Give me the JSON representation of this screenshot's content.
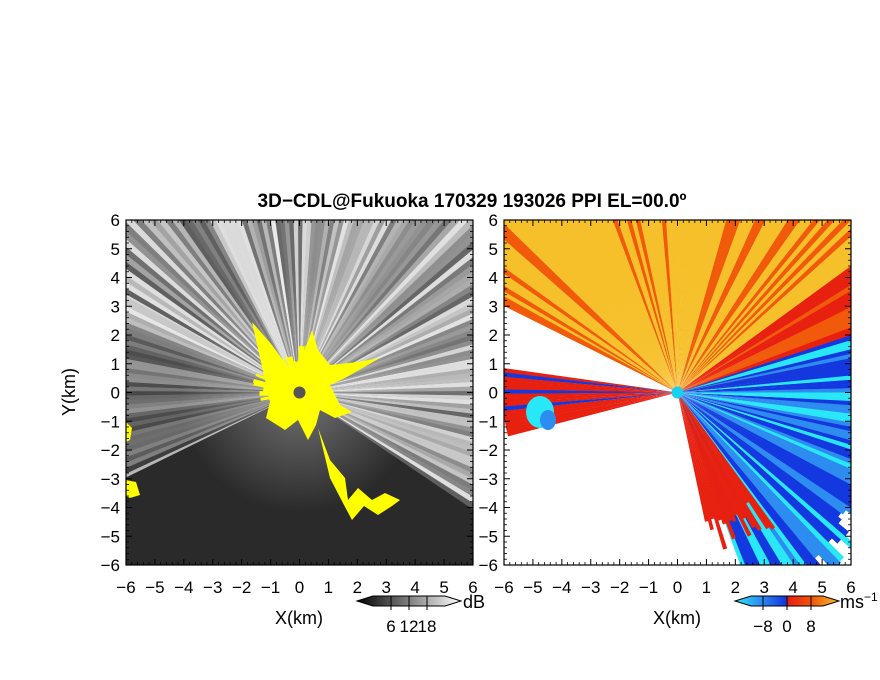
{
  "title": "3D−CDL@Fukuoka 170329 193026 PPI EL=00.0º",
  "colors": {
    "yellow": "#ffff00",
    "cyan": "#18d0f0",
    "velocity_scale": [
      "#28e8f8",
      "#2d8cf0",
      "#1438e0",
      "#e82010",
      "#f05a0a",
      "#f6c02a"
    ]
  },
  "chart_data": [
    {
      "type": "heatmap",
      "name": "reflectivity",
      "xlabel": "X(km)",
      "ylabel": "Y(km)",
      "xlim": [
        -6,
        6
      ],
      "ylim": [
        -6,
        6
      ],
      "xticks": [
        "−6",
        "−5",
        "−4",
        "−3",
        "−2",
        "−1",
        "0",
        "1",
        "2",
        "3",
        "4",
        "5",
        "6"
      ],
      "yticks": [
        "6",
        "5",
        "4",
        "3",
        "2",
        "1",
        "0",
        "−1",
        "−2",
        "−3",
        "−4",
        "−5",
        "−6"
      ],
      "colorbar": {
        "unit": "dB",
        "ticks": [
          "6",
          "12",
          "18"
        ],
        "range": [
          0,
          24
        ],
        "colors": [
          "#000000",
          "#ffffff"
        ]
      }
    },
    {
      "type": "heatmap",
      "name": "doppler-velocity",
      "xlabel": "X(km)",
      "xlim": [
        -6,
        6
      ],
      "ylim": [
        -6,
        6
      ],
      "xticks": [
        "−6",
        "−5",
        "−4",
        "−3",
        "−2",
        "−1",
        "0",
        "1",
        "2",
        "3",
        "4",
        "5",
        "6"
      ],
      "yticks": [
        "6",
        "5",
        "4",
        "3",
        "2",
        "1",
        "0",
        "−1",
        "−2",
        "−3",
        "−4",
        "−5",
        "−6"
      ],
      "colorbar": {
        "unit": "ms",
        "unit_exp": "−1",
        "ticks": [
          "−8",
          "0",
          "8"
        ],
        "range": [
          -12,
          12
        ]
      }
    }
  ]
}
